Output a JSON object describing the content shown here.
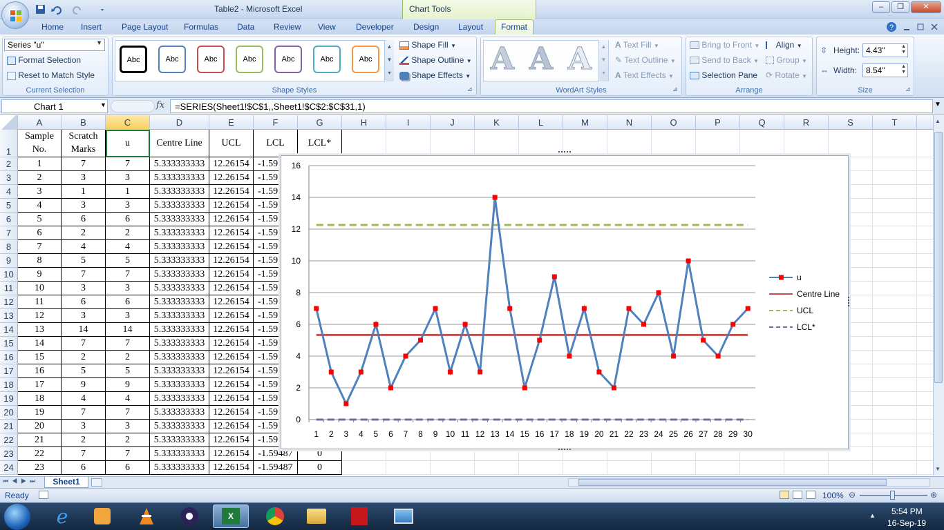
{
  "window": {
    "title": "Table2  -  Microsoft Excel",
    "context_tab_group": "Chart Tools",
    "minimize": "–",
    "restore": "❐",
    "close": "✕"
  },
  "tabs": [
    "Home",
    "Insert",
    "Page Layout",
    "Formulas",
    "Data",
    "Review",
    "View",
    "Developer",
    "Design",
    "Layout",
    "Format"
  ],
  "active_tab": "Format",
  "ribbon": {
    "current_selection": {
      "selector_value": "Series \"u\"",
      "format_selection": "Format Selection",
      "reset_to_match_style": "Reset to Match Style",
      "label": "Current Selection"
    },
    "shape_styles": {
      "thumbnails": [
        {
          "text": "Abc",
          "color": "#000000"
        },
        {
          "text": "Abc",
          "color": "#4f81bd"
        },
        {
          "text": "Abc",
          "color": "#c0504d"
        },
        {
          "text": "Abc",
          "color": "#9bbb59"
        },
        {
          "text": "Abc",
          "color": "#8064a2"
        },
        {
          "text": "Abc",
          "color": "#4bacc6"
        },
        {
          "text": "Abc",
          "color": "#f79646"
        }
      ],
      "shape_fill": "Shape Fill",
      "shape_outline": "Shape Outline",
      "shape_effects": "Shape Effects",
      "label": "Shape Styles"
    },
    "wordart_styles": {
      "letters": [
        "A",
        "A",
        "A"
      ],
      "text_fill": "Text Fill",
      "text_outline": "Text Outline",
      "text_effects": "Text Effects",
      "label": "WordArt Styles"
    },
    "arrange": {
      "bring_to_front": "Bring to Front",
      "send_to_back": "Send to Back",
      "selection_pane": "Selection Pane",
      "align": "Align",
      "group": "Group",
      "rotate": "Rotate",
      "label": "Arrange"
    },
    "size": {
      "height_label": "Height:",
      "height_value": "4.43\"",
      "width_label": "Width:",
      "width_value": "8.54\"",
      "label": "Size"
    }
  },
  "formula_bar": {
    "name_box": "Chart 1",
    "fx": "fx",
    "formula": "=SERIES(Sheet1!$C$1,,Sheet1!$C$2:$C$31,1)"
  },
  "sheet": {
    "columns": [
      "A",
      "B",
      "C",
      "D",
      "E",
      "F",
      "G",
      "H",
      "I",
      "J",
      "K",
      "L",
      "M",
      "N",
      "O",
      "P",
      "Q",
      "R",
      "S",
      "T"
    ],
    "header_row": [
      {
        "l1": "Sample",
        "l2": "No."
      },
      {
        "l1": "Scratch",
        "l2": "Marks"
      },
      {
        "l1": "u",
        "l2": ""
      },
      {
        "l1": "Centre Line",
        "l2": ""
      },
      {
        "l1": "UCL",
        "l2": ""
      },
      {
        "l1": "LCL",
        "l2": ""
      },
      {
        "l1": "LCL*",
        "l2": ""
      }
    ],
    "row_numbers": [
      "1",
      "2",
      "3",
      "4",
      "5",
      "6",
      "7",
      "8",
      "9",
      "10",
      "11",
      "12",
      "13",
      "14",
      "15",
      "16",
      "17",
      "18",
      "19",
      "20",
      "21",
      "22",
      "23",
      "24"
    ],
    "rows": [
      [
        "1",
        "7",
        "7",
        "5.333333333",
        "12.26154",
        "-1.59"
      ],
      [
        "2",
        "3",
        "3",
        "5.333333333",
        "12.26154",
        "-1.59"
      ],
      [
        "3",
        "1",
        "1",
        "5.333333333",
        "12.26154",
        "-1.59"
      ],
      [
        "4",
        "3",
        "3",
        "5.333333333",
        "12.26154",
        "-1.59"
      ],
      [
        "5",
        "6",
        "6",
        "5.333333333",
        "12.26154",
        "-1.59"
      ],
      [
        "6",
        "2",
        "2",
        "5.333333333",
        "12.26154",
        "-1.59"
      ],
      [
        "7",
        "4",
        "4",
        "5.333333333",
        "12.26154",
        "-1.59"
      ],
      [
        "8",
        "5",
        "5",
        "5.333333333",
        "12.26154",
        "-1.59"
      ],
      [
        "9",
        "7",
        "7",
        "5.333333333",
        "12.26154",
        "-1.59"
      ],
      [
        "10",
        "3",
        "3",
        "5.333333333",
        "12.26154",
        "-1.59"
      ],
      [
        "11",
        "6",
        "6",
        "5.333333333",
        "12.26154",
        "-1.59"
      ],
      [
        "12",
        "3",
        "3",
        "5.333333333",
        "12.26154",
        "-1.59"
      ],
      [
        "13",
        "14",
        "14",
        "5.333333333",
        "12.26154",
        "-1.59"
      ],
      [
        "14",
        "7",
        "7",
        "5.333333333",
        "12.26154",
        "-1.59"
      ],
      [
        "15",
        "2",
        "2",
        "5.333333333",
        "12.26154",
        "-1.59"
      ],
      [
        "16",
        "5",
        "5",
        "5.333333333",
        "12.26154",
        "-1.59"
      ],
      [
        "17",
        "9",
        "9",
        "5.333333333",
        "12.26154",
        "-1.59"
      ],
      [
        "18",
        "4",
        "4",
        "5.333333333",
        "12.26154",
        "-1.59"
      ],
      [
        "19",
        "7",
        "7",
        "5.333333333",
        "12.26154",
        "-1.59"
      ],
      [
        "20",
        "3",
        "3",
        "5.333333333",
        "12.26154",
        "-1.59"
      ],
      [
        "21",
        "2",
        "2",
        "5.333333333",
        "12.26154",
        "-1.59"
      ],
      [
        "22",
        "7",
        "7",
        "5.333333333",
        "12.26154",
        "-1.59487",
        "0"
      ],
      [
        "23",
        "6",
        "6",
        "5.333333333",
        "12.26154",
        "-1.59487",
        "0"
      ]
    ],
    "sheet_tab": "Sheet1"
  },
  "chart_data": {
    "type": "line",
    "categories": [
      "1",
      "2",
      "3",
      "4",
      "5",
      "6",
      "7",
      "8",
      "9",
      "10",
      "11",
      "12",
      "13",
      "14",
      "15",
      "16",
      "17",
      "18",
      "19",
      "20",
      "21",
      "22",
      "23",
      "24",
      "25",
      "26",
      "27",
      "28",
      "29",
      "30"
    ],
    "series": [
      {
        "name": "u",
        "values": [
          7,
          3,
          1,
          3,
          6,
          2,
          4,
          5,
          7,
          3,
          6,
          3,
          14,
          7,
          2,
          5,
          9,
          4,
          7,
          3,
          2,
          7,
          6,
          8,
          4,
          10,
          5,
          4,
          6,
          7
        ],
        "color": "#4f81bd",
        "marker_color": "#ff0000"
      },
      {
        "name": "Centre Line",
        "values": [
          5.333333333,
          5.333333333,
          5.333333333,
          5.333333333,
          5.333333333,
          5.333333333,
          5.333333333,
          5.333333333,
          5.333333333,
          5.333333333,
          5.333333333,
          5.333333333,
          5.333333333,
          5.333333333,
          5.333333333,
          5.333333333,
          5.333333333,
          5.333333333,
          5.333333333,
          5.333333333,
          5.333333333,
          5.333333333,
          5.333333333,
          5.333333333,
          5.333333333,
          5.333333333,
          5.333333333,
          5.333333333,
          5.333333333,
          5.333333333
        ],
        "color": "#c0504d"
      },
      {
        "name": "UCL",
        "values": [
          12.26154,
          12.26154,
          12.26154,
          12.26154,
          12.26154,
          12.26154,
          12.26154,
          12.26154,
          12.26154,
          12.26154,
          12.26154,
          12.26154,
          12.26154,
          12.26154,
          12.26154,
          12.26154,
          12.26154,
          12.26154,
          12.26154,
          12.26154,
          12.26154,
          12.26154,
          12.26154,
          12.26154,
          12.26154,
          12.26154,
          12.26154,
          12.26154,
          12.26154,
          12.26154
        ],
        "color": "#9bbb59",
        "dashed": true
      },
      {
        "name": "LCL*",
        "values": [
          0,
          0,
          0,
          0,
          0,
          0,
          0,
          0,
          0,
          0,
          0,
          0,
          0,
          0,
          0,
          0,
          0,
          0,
          0,
          0,
          0,
          0,
          0,
          0,
          0,
          0,
          0,
          0,
          0,
          0
        ],
        "color": "#8064a2",
        "dashed": true
      }
    ],
    "y_ticks": [
      "0",
      "2",
      "4",
      "6",
      "8",
      "10",
      "12",
      "14",
      "16"
    ],
    "ylim": [
      0,
      16
    ],
    "grid": true,
    "legend_position": "right"
  },
  "status": {
    "ready": "Ready",
    "zoom": "100%"
  },
  "taskbar": {
    "time": "5:54 PM",
    "date": "16-Sep-19"
  }
}
